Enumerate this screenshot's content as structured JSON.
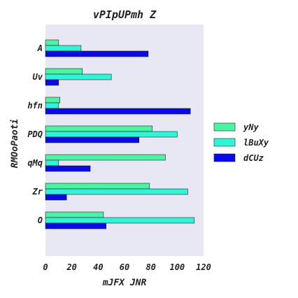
{
  "chart_data": {
    "type": "bar",
    "orientation": "horizontal",
    "title": "vPIpUPmh  Z",
    "xlabel": "mJFX  JNR",
    "ylabel": "RMOoPaoti",
    "categories": [
      "A",
      "Uv",
      "hfn",
      "PDQ",
      "qMq",
      "Zr",
      "O"
    ],
    "xlim": [
      0,
      120
    ],
    "xticks": [
      0,
      20,
      40,
      60,
      80,
      100,
      120
    ],
    "grid": false,
    "legend_position": "right",
    "series": [
      {
        "name": "yNy",
        "color": "#4ef2a3",
        "values": [
          10,
          28,
          11,
          81,
          91,
          79,
          44
        ]
      },
      {
        "name": "lBuXy",
        "color": "#2ef5d8",
        "values": [
          27,
          50,
          10,
          100,
          10,
          108,
          113
        ]
      },
      {
        "name": "dCUz",
        "color": "#0a0ae6",
        "values": [
          78,
          10,
          110,
          71,
          34,
          16,
          46
        ]
      }
    ]
  }
}
